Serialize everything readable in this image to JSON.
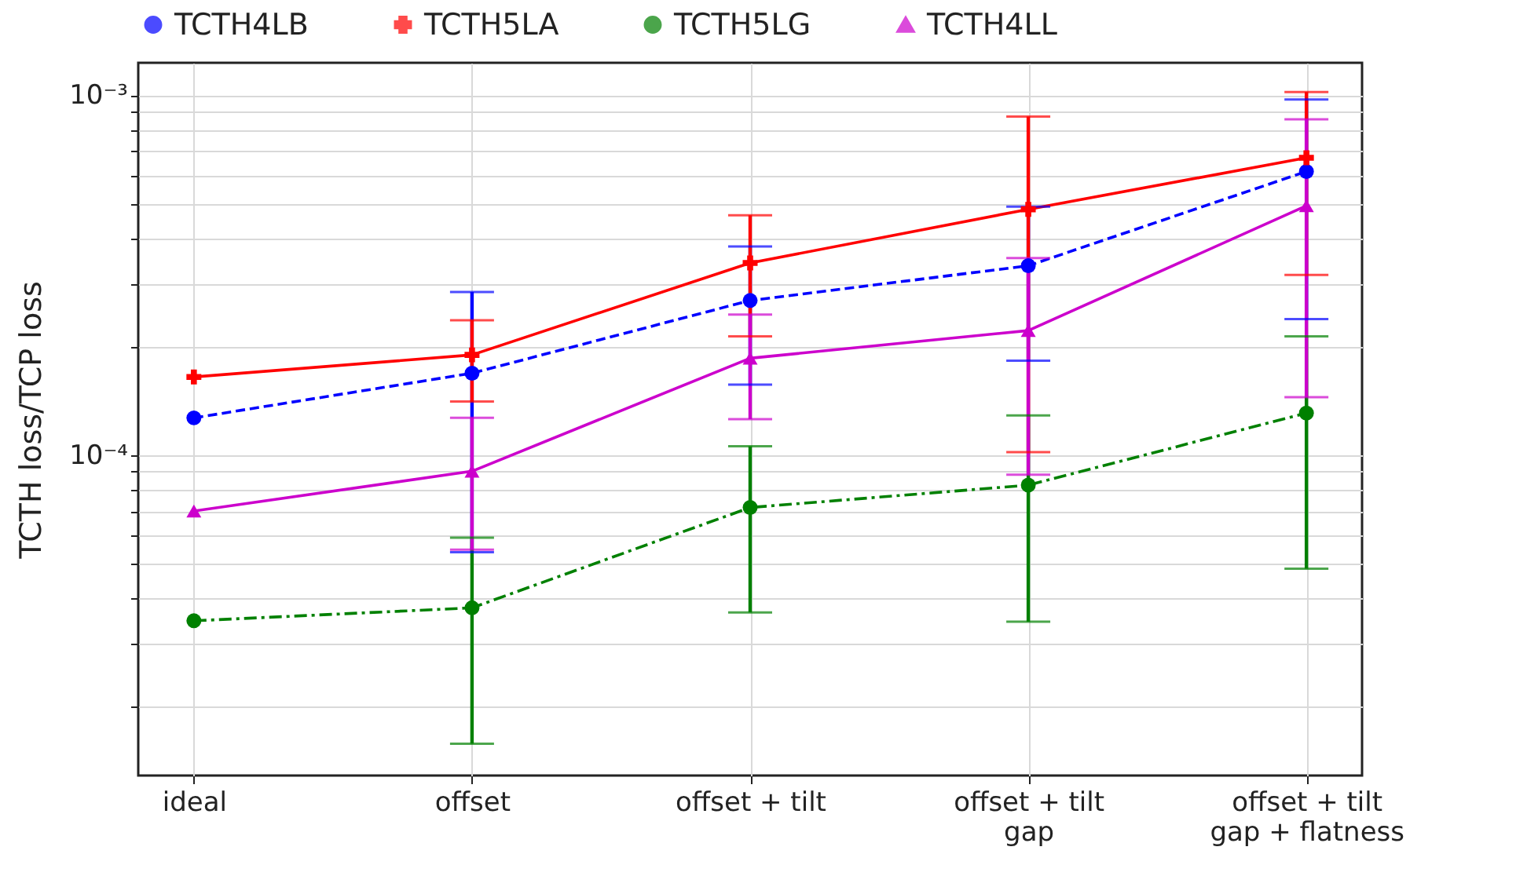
{
  "chart_data": {
    "type": "line",
    "ylabel": "TCTH loss/TCP loss",
    "categories": [
      "ideal",
      "offset",
      "offset + tilt",
      "offset + tilt\ngap",
      "offset + tilt\ngap + flatness"
    ],
    "log": "y",
    "ylim": [
      1.29e-05,
      0.00123
    ],
    "yticks": [
      {
        "value": 2e-05,
        "label": null
      },
      {
        "value": 3e-05,
        "label": null
      },
      {
        "value": 4e-05,
        "label": null
      },
      {
        "value": 5e-05,
        "label": null
      },
      {
        "value": 6e-05,
        "label": null
      },
      {
        "value": 7e-05,
        "label": null
      },
      {
        "value": 8e-05,
        "label": null
      },
      {
        "value": 9e-05,
        "label": null
      },
      {
        "value": 0.0001,
        "label": "10⁻⁴"
      },
      {
        "value": 0.0002,
        "label": null
      },
      {
        "value": 0.0003,
        "label": null
      },
      {
        "value": 0.0004,
        "label": null
      },
      {
        "value": 0.0005,
        "label": null
      },
      {
        "value": 0.0006,
        "label": null
      },
      {
        "value": 0.0007,
        "label": null
      },
      {
        "value": 0.0008,
        "label": null
      },
      {
        "value": 0.0009,
        "label": null
      },
      {
        "value": 0.001,
        "label": "10⁻³"
      }
    ],
    "grid": true,
    "legend": "top",
    "series": [
      {
        "name": "TCTH4LB",
        "color": "#0000ff",
        "marker": "circle",
        "line_style": "dashed",
        "values": [
          0.000127,
          0.000169,
          0.000269,
          0.000336,
          0.000614
        ],
        "errors": [
          null,
          [
            5.38e-05,
            0.000284
          ],
          [
            0.000157,
            0.00038
          ],
          [
            0.000183,
            0.00049
          ],
          [
            0.000239,
            0.000973
          ]
        ]
      },
      {
        "name": "TCTH5LA",
        "color": "#ff0000",
        "marker": "cross",
        "line_style": "solid",
        "values": [
          0.000165,
          0.00019,
          0.000342,
          0.000482,
          0.00067
        ],
        "errors": [
          null,
          [
            0.000141,
            0.000237
          ],
          [
            0.000214,
            0.000464
          ],
          [
            0.000102,
            0.000872
          ],
          [
            0.000317,
            0.00102
          ]
        ]
      },
      {
        "name": "TCTH5LG",
        "color": "#008000",
        "marker": "circle",
        "line_style": "dashdot",
        "values": [
          3.47e-05,
          3.77e-05,
          7.16e-05,
          8.26e-05,
          0.000131
        ],
        "errors": [
          null,
          [
            1.58e-05,
            5.9e-05
          ],
          [
            3.66e-05,
            0.000106
          ],
          [
            3.45e-05,
            0.000129
          ],
          [
            4.84e-05,
            0.000214
          ]
        ]
      },
      {
        "name": "TCTH4LL",
        "color": "#cc00cc",
        "marker": "triangle",
        "line_style": "solid",
        "values": [
          7e-05,
          9.03e-05,
          0.000186,
          0.000222,
          0.000493
        ],
        "errors": [
          null,
          [
            5.47e-05,
            0.000127
          ],
          [
            0.000126,
            0.000246
          ],
          [
            8.83e-05,
            0.000353
          ],
          [
            0.000145,
            0.000857
          ]
        ]
      }
    ]
  }
}
